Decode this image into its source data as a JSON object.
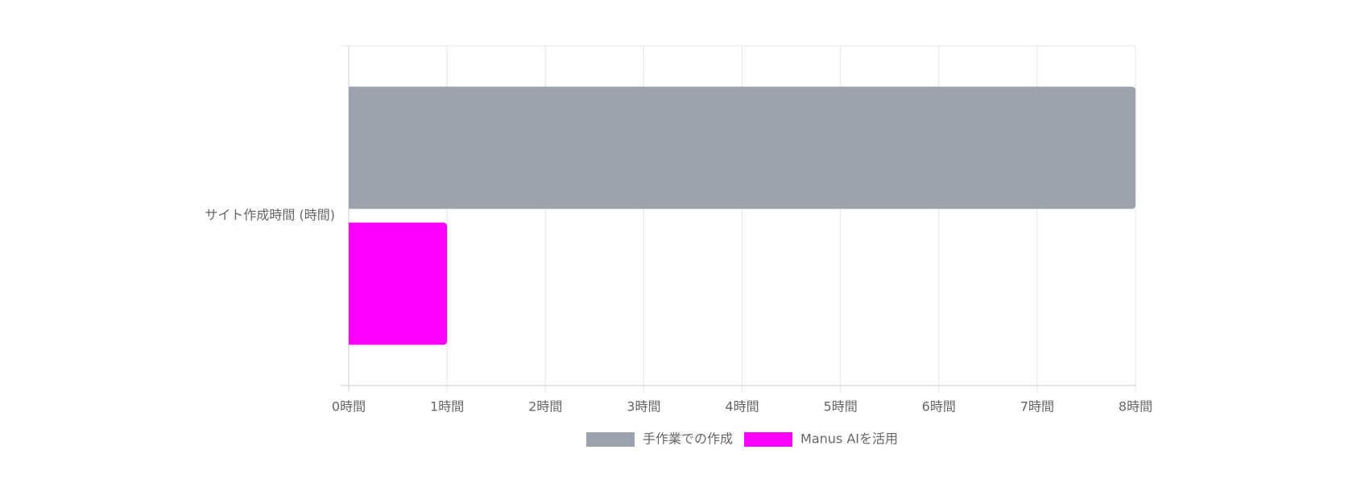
{
  "chart_data": {
    "type": "hbar",
    "categories": [
      "サイト作成時間 (時間)"
    ],
    "series": [
      {
        "name": "手作業での作成",
        "color": "#9ca3af",
        "values": [
          8
        ]
      },
      {
        "name": "Manus AIを活用",
        "color": "#ff00ff",
        "values": [
          1
        ]
      }
    ],
    "xlim": [
      0,
      8
    ],
    "xticks": [
      {
        "value": 0,
        "label": "0時間"
      },
      {
        "value": 1,
        "label": "1時間"
      },
      {
        "value": 2,
        "label": "2時間"
      },
      {
        "value": 3,
        "label": "3時間"
      },
      {
        "value": 4,
        "label": "4時間"
      },
      {
        "value": 5,
        "label": "5時間"
      },
      {
        "value": 6,
        "label": "6時間"
      },
      {
        "value": 7,
        "label": "7時間"
      },
      {
        "value": 8,
        "label": "8時間"
      }
    ],
    "grid": true,
    "legend": "bottom"
  }
}
